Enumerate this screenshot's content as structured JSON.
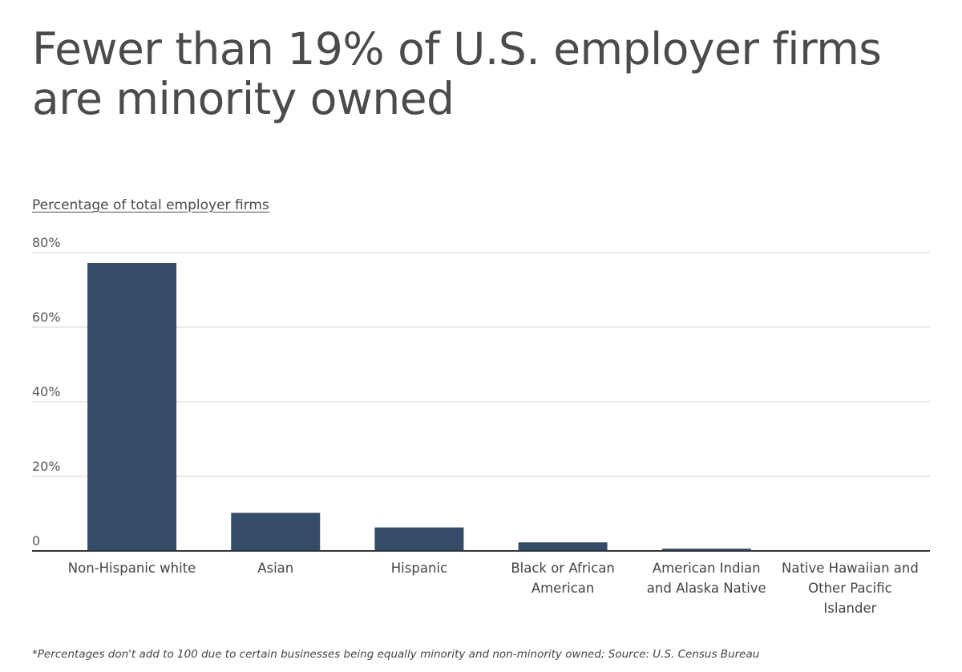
{
  "title": "Fewer than 19% of U.S. employer firms are minority owned",
  "footnote": "*Percentages don't add to 100 due to certain businesses being equally minority and non-minority owned; Source: U.S. Census Bureau",
  "colors": {
    "bar": "#344c68",
    "grid": "#d6d6d6",
    "baseline": "#333333"
  },
  "chart_data": {
    "type": "bar",
    "ylabel": "Percentage of total employer firms",
    "categories": [
      "Non-Hispanic white",
      "Asian",
      "Hispanic",
      "Black or African American",
      "American Indian and Alaska Native",
      "Native Hawaiian and Other Pacific Islander"
    ],
    "category_lines": [
      [
        "Non-Hispanic white"
      ],
      [
        "Asian"
      ],
      [
        "Hispanic"
      ],
      [
        "Black or African",
        "American"
      ],
      [
        "American Indian",
        "and Alaska Native"
      ],
      [
        "Native Hawaiian and",
        "Other Pacific",
        "Islander"
      ]
    ],
    "values": [
      77.2,
      10.2,
      6.3,
      2.3,
      0.6,
      0.1
    ],
    "ylim": [
      0,
      80
    ],
    "yticks": [
      0,
      20,
      40,
      60,
      80
    ],
    "ytick_labels": [
      "0",
      "20%",
      "40%",
      "60%",
      "80%"
    ],
    "grid": true,
    "legend": "none"
  }
}
